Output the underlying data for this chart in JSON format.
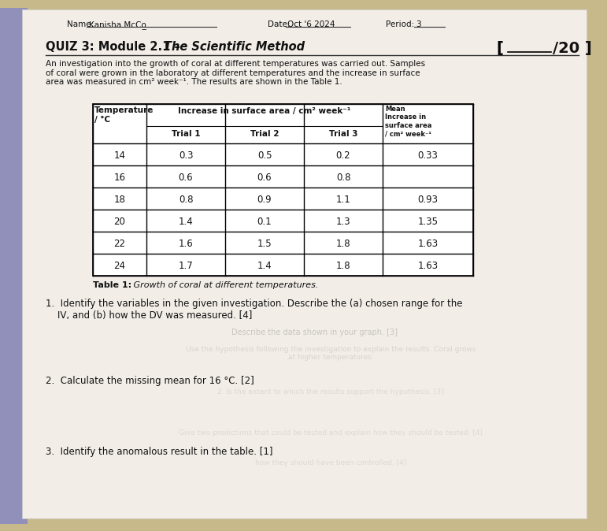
{
  "bg_color": "#c8b98a",
  "paper_color": "#f0ede8",
  "shadow_color": "#a09070",
  "name_label": "Name:",
  "name_value": "Kanisha McCo̲̲̲̲̲",
  "date_label": "Date:",
  "date_value": "Oct '6 2024",
  "period_label": "Period:",
  "period_value": "3",
  "quiz_line1": "QUIZ 3: Module 2.1 – ",
  "quiz_line2": "The Scientific Method",
  "score_text": "[        /20 ]",
  "intro": "An investigation into the growth of coral at different temperatures was carried out. Samples\nof coral were grown in the laboratory at different temperatures and the increase in surface\narea was measured in cm² week⁻¹. The results are shown in the Table 1.",
  "table_data": [
    [
      "14",
      "0.3",
      "0.5",
      "0.2",
      "0.33"
    ],
    [
      "16",
      "0.6",
      "0.6",
      "0.8",
      ""
    ],
    [
      "18",
      "0.8",
      "0.9",
      "1.1",
      "0.93"
    ],
    [
      "20",
      "1.4",
      "0.1",
      "1.3",
      "1.35"
    ],
    [
      "22",
      "1.6",
      "1.5",
      "1.8",
      "1.63"
    ],
    [
      "24",
      "1.7",
      "1.4",
      "1.8",
      "1.63"
    ]
  ],
  "table_caption_bold": "Table 1:",
  "table_caption_italic": " Growth of coral at different temperatures.",
  "q1": "1.  Identify the variables in the given investigation. Describe the (a) chosen range for the\n    IV, and (b) how the DV was measured. [4]",
  "q1_faded": "Describe the data shown in your graph. [3]",
  "q2": "2.  Calculate the missing mean for 16 °C. [2]",
  "q2_faded1": "Use the hypothesis following the investigation to explain the results. Coral grows\nat higher temperatures.",
  "q2_faded2": "2. Is the extent to which the results support the hypothesis. [3]",
  "q3": "3.  Identify the anomalous result in the table. [1]",
  "q3_faded1": "Give two predictions that could be tested and explain how they should be tested. [4]",
  "q3_faded2": "how they should have been controlled. [4]"
}
